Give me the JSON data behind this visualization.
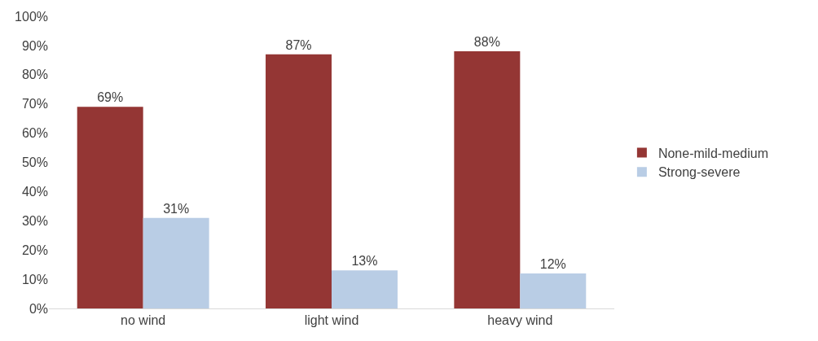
{
  "chart_data": {
    "type": "bar",
    "categories": [
      "no wind",
      "light wind",
      "heavy wind"
    ],
    "series": [
      {
        "name": "None-mild-medium",
        "color": "#943634",
        "values": [
          69,
          87,
          88
        ],
        "value_labels": [
          "69%",
          "87%",
          "88%"
        ]
      },
      {
        "name": "Strong-severe",
        "color": "#b9cde5",
        "values": [
          31,
          13,
          12
        ],
        "value_labels": [
          "31%",
          "13%",
          "12%"
        ]
      }
    ],
    "ylim": [
      0,
      100
    ],
    "yticks": [
      {
        "value": 0,
        "label": "0%"
      },
      {
        "value": 10,
        "label": "10%"
      },
      {
        "value": 20,
        "label": "20%"
      },
      {
        "value": 30,
        "label": "30%"
      },
      {
        "value": 40,
        "label": "40%"
      },
      {
        "value": 50,
        "label": "50%"
      },
      {
        "value": 60,
        "label": "60%"
      },
      {
        "value": 70,
        "label": "70%"
      },
      {
        "value": 80,
        "label": "80%"
      },
      {
        "value": 90,
        "label": "90%"
      },
      {
        "value": 100,
        "label": "100%"
      }
    ],
    "legend": "right"
  }
}
